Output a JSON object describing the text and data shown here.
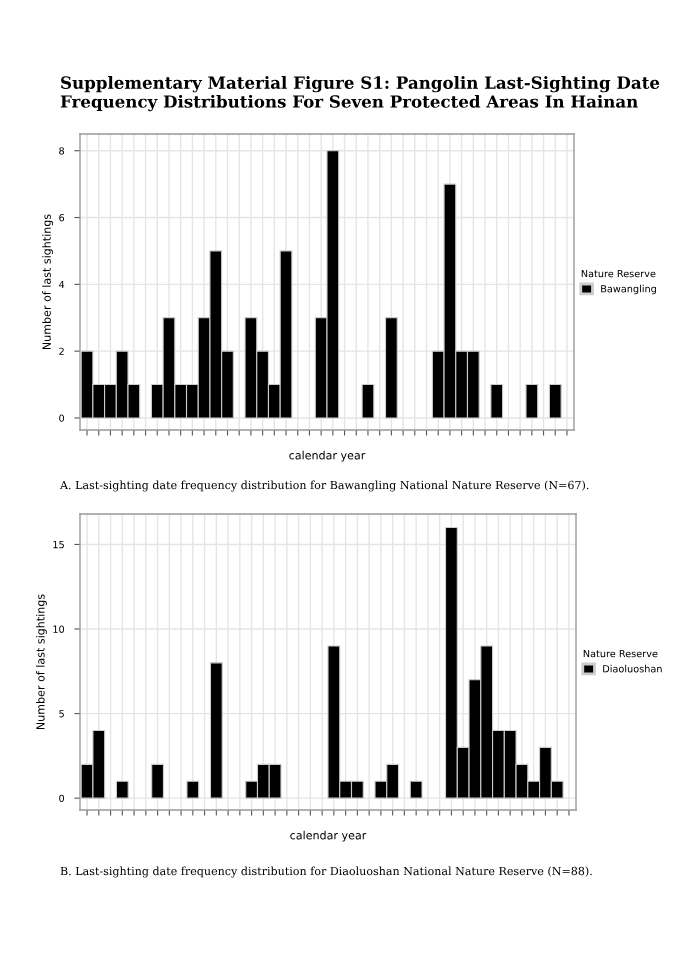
{
  "chart_data": [
    {
      "type": "bar",
      "title": "Supplementary Material Figure S1: Pangolin Last-Sighting Date Frequency Distributions For Seven Protected Areas In Hainan",
      "xlabel": "calendar year",
      "ylabel": "Number of last sightings",
      "legend_title": "Nature Reserve",
      "legend": "right",
      "grid": true,
      "categories": [
        null,
        null,
        null,
        null,
        null,
        null,
        null,
        null,
        null,
        null,
        null,
        null,
        null,
        null,
        null,
        null,
        null,
        null,
        null,
        null,
        null,
        null,
        null,
        null,
        null,
        null,
        null,
        null,
        null,
        null,
        null,
        null,
        null,
        null,
        null,
        null,
        null,
        null,
        null,
        null,
        null,
        null
      ],
      "series": [
        {
          "name": "Bawangling",
          "color": "#000000",
          "values": [
            2,
            1,
            1,
            2,
            1,
            0,
            1,
            3,
            1,
            1,
            3,
            5,
            2,
            0,
            3,
            2,
            1,
            5,
            0,
            0,
            3,
            8,
            0,
            0,
            1,
            0,
            3,
            0,
            0,
            0,
            2,
            7,
            2,
            2,
            0,
            1,
            0,
            0,
            1,
            0,
            1,
            0
          ]
        }
      ],
      "ylim": [
        -0.36,
        8.5
      ],
      "yticks": [
        0,
        2,
        4,
        6,
        8
      ],
      "annotations": [
        "A. Last-sighting date frequency distribution for Bawangling National Nature Reserve (N=67)."
      ]
    },
    {
      "type": "bar",
      "xlabel": "calendar year",
      "ylabel": "Number of last sightings",
      "legend_title": "Nature Reserve",
      "legend": "right",
      "grid": true,
      "categories": [
        null,
        null,
        null,
        null,
        null,
        null,
        null,
        null,
        null,
        null,
        null,
        null,
        null,
        null,
        null,
        null,
        null,
        null,
        null,
        null,
        null,
        null,
        null,
        null,
        null,
        null,
        null,
        null,
        null,
        null,
        null,
        null,
        null,
        null,
        null,
        null,
        null,
        null,
        null,
        null,
        null,
        null
      ],
      "series": [
        {
          "name": "Diaoluoshan",
          "color": "#000000",
          "values": [
            2,
            4,
            0,
            1,
            0,
            0,
            2,
            0,
            0,
            1,
            0,
            8,
            0,
            0,
            1,
            2,
            2,
            0,
            0,
            0,
            0,
            9,
            1,
            1,
            0,
            1,
            2,
            0,
            1,
            0,
            0,
            16,
            3,
            7,
            9,
            4,
            4,
            2,
            1,
            3,
            1,
            0
          ]
        }
      ],
      "ylim": [
        -0.7,
        16.8
      ],
      "yticks": [
        0,
        5,
        10,
        15
      ],
      "annotations": [
        "B. Last-sighting date frequency distribution for Diaoluoshan National Nature Reserve (N=88)."
      ]
    }
  ]
}
